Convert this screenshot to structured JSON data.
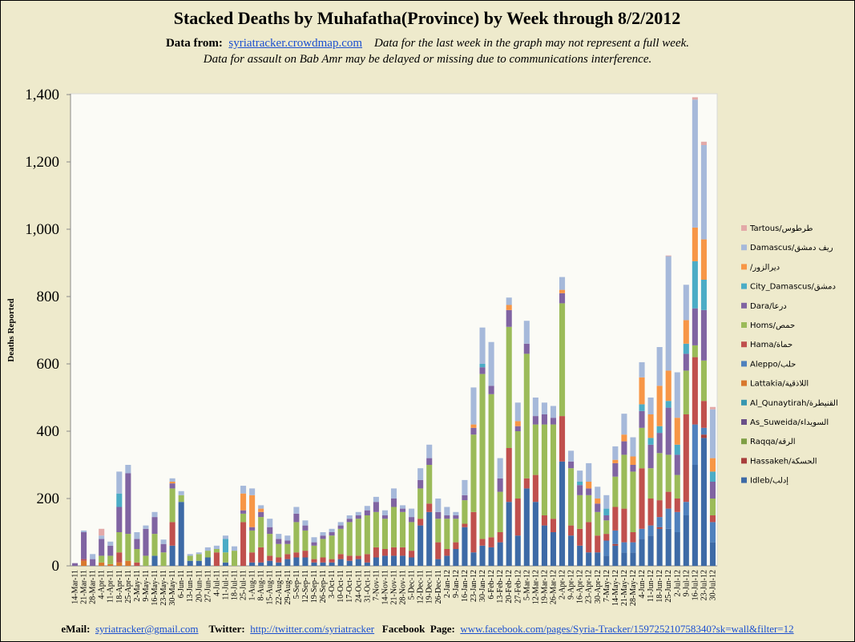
{
  "chart_data": {
    "type": "stacked_bar",
    "title": "Stacked Deaths by Muhafatha(Province) by Week through 8/2/2012",
    "y_label": "Deaths Reported",
    "ylim": [
      0,
      1400
    ],
    "yticks": [
      0,
      200,
      400,
      600,
      800,
      {
        "value": 1000,
        "label": "1,000"
      },
      {
        "value": 1200,
        "label": "1,200"
      },
      {
        "value": 1400,
        "label": "1,400"
      }
    ],
    "grid": false,
    "legend": "right",
    "categories": [
      "14-Mar-11",
      "21-Mar-11",
      "28-Mar-11",
      "4-Apr-11",
      "11-Apr-11",
      "18-Apr-11",
      "25-Apr-11",
      "2-May-11",
      "9-May-11",
      "16-May-11",
      "23-May-11",
      "30-May-11",
      "6-Jun-11",
      "13-Jun-11",
      "20-Jun-11",
      "27-Jun-11",
      "4-Jul-11",
      "11-Jul-11",
      "18-Jul-11",
      "25-Jul-11",
      "1-Aug-11",
      "8-Aug-11",
      "15-Aug-11",
      "22-Aug-11",
      "29-Aug-11",
      "5-Sep-11",
      "12-Sep-11",
      "19-Sep-11",
      "26-Sep-11",
      "3-Oct-11",
      "10-Oct-11",
      "17-Oct-11",
      "24-Oct-11",
      "31-Oct-11",
      "7-Nov-11",
      "14-Nov-11",
      "21-Nov-11",
      "28-Nov-11",
      "5-Dec-11",
      "12-Dec-11",
      "19-Dec-11",
      "26-Dec-11",
      "2-Jan-12",
      "9-Jan-12",
      "16-Jan-12",
      "23-Jan-12",
      "30-Jan-12",
      "6-Feb-12",
      "13-Feb-12",
      "20-Feb-12",
      "27-Feb-12",
      "5-Mar-12",
      "12-Mar-12",
      "19-Mar-12",
      "26-Mar-12",
      "2-Apr-12",
      "9-Apr-12",
      "16-Apr-12",
      "23-Apr-12",
      "30-Apr-12",
      "7-May-12",
      "14-May-12",
      "21-May-12",
      "28-May-12",
      "4-Jun-12",
      "11-Jun-12",
      "18-Jun-12",
      "25-Jun-12",
      "2-Jul-12",
      "9-Jul-12",
      "16-Jul-12",
      "23-Jul-12",
      "30-Jul-12"
    ],
    "series": [
      {
        "name": "Idleb/إدلب",
        "color": "#3d6aa6",
        "values": [
          0,
          0,
          0,
          0,
          0,
          0,
          0,
          0,
          0,
          30,
          0,
          60,
          190,
          15,
          15,
          25,
          0,
          10,
          0,
          0,
          10,
          10,
          15,
          10,
          20,
          25,
          25,
          10,
          10,
          10,
          20,
          15,
          20,
          10,
          25,
          30,
          30,
          30,
          25,
          120,
          160,
          20,
          30,
          50,
          115,
          40,
          60,
          55,
          70,
          190,
          90,
          230,
          190,
          120,
          100,
          310,
          90,
          60,
          40,
          40,
          30,
          60,
          40,
          40,
          80,
          90,
          110,
          110,
          100,
          150,
          300,
          380,
          70
        ]
      },
      {
        "name": "Hassakeh/الحسكة",
        "color": "#a83f3c",
        "values": [
          0,
          0,
          0,
          0,
          0,
          0,
          0,
          0,
          0,
          0,
          0,
          0,
          0,
          0,
          0,
          0,
          0,
          0,
          0,
          0,
          0,
          0,
          0,
          0,
          0,
          0,
          0,
          0,
          0,
          0,
          0,
          0,
          0,
          0,
          0,
          0,
          0,
          0,
          0,
          0,
          0,
          0,
          0,
          0,
          0,
          0,
          0,
          0,
          0,
          0,
          0,
          0,
          0,
          0,
          0,
          0,
          0,
          0,
          0,
          0,
          0,
          5,
          0,
          0,
          0,
          0,
          5,
          0,
          0,
          0,
          0,
          10,
          0
        ]
      },
      {
        "name": "Raqqa/الرقة",
        "color": "#7f9f45",
        "values": [
          0,
          0,
          0,
          0,
          0,
          0,
          0,
          0,
          0,
          0,
          0,
          0,
          0,
          0,
          0,
          0,
          0,
          0,
          0,
          0,
          0,
          0,
          0,
          0,
          0,
          0,
          0,
          0,
          0,
          0,
          0,
          0,
          0,
          0,
          0,
          0,
          0,
          0,
          0,
          0,
          0,
          0,
          0,
          0,
          0,
          0,
          0,
          0,
          0,
          0,
          0,
          0,
          0,
          0,
          0,
          0,
          0,
          0,
          0,
          0,
          0,
          0,
          0,
          0,
          0,
          0,
          0,
          0,
          0,
          0,
          0,
          0,
          0
        ]
      },
      {
        "name": "As_Suweida/السويداء",
        "color": "#6a5088",
        "values": [
          0,
          0,
          0,
          0,
          0,
          0,
          0,
          0,
          0,
          0,
          0,
          0,
          0,
          0,
          0,
          0,
          0,
          0,
          0,
          0,
          0,
          0,
          0,
          0,
          0,
          0,
          0,
          0,
          0,
          0,
          0,
          0,
          0,
          0,
          0,
          0,
          0,
          0,
          0,
          0,
          0,
          0,
          0,
          0,
          0,
          0,
          0,
          0,
          0,
          0,
          0,
          0,
          0,
          0,
          0,
          0,
          0,
          0,
          0,
          0,
          0,
          0,
          0,
          0,
          0,
          0,
          0,
          0,
          0,
          0,
          0,
          0,
          0
        ]
      },
      {
        "name": "Al_Qunaytirah/القنيطرة",
        "color": "#3797b0",
        "values": [
          0,
          0,
          0,
          0,
          0,
          0,
          0,
          0,
          0,
          0,
          0,
          0,
          0,
          0,
          0,
          0,
          0,
          0,
          0,
          0,
          0,
          0,
          0,
          0,
          0,
          0,
          0,
          0,
          0,
          0,
          0,
          0,
          0,
          0,
          0,
          0,
          0,
          0,
          0,
          0,
          0,
          0,
          0,
          0,
          0,
          0,
          0,
          0,
          0,
          0,
          0,
          0,
          0,
          0,
          0,
          0,
          0,
          0,
          0,
          0,
          0,
          0,
          0,
          0,
          0,
          0,
          0,
          0,
          0,
          0,
          0,
          0,
          0
        ]
      },
      {
        "name": "Lattakia/اللاذقية",
        "color": "#d8782e",
        "values": [
          0,
          15,
          0,
          10,
          5,
          10,
          15,
          0,
          0,
          0,
          0,
          0,
          0,
          0,
          0,
          0,
          0,
          0,
          0,
          0,
          0,
          0,
          0,
          0,
          0,
          0,
          0,
          0,
          0,
          0,
          0,
          0,
          0,
          0,
          0,
          0,
          0,
          0,
          0,
          0,
          0,
          0,
          0,
          0,
          0,
          0,
          0,
          0,
          0,
          0,
          0,
          0,
          0,
          0,
          0,
          0,
          0,
          0,
          0,
          0,
          0,
          0,
          0,
          0,
          0,
          0,
          0,
          0,
          0,
          0,
          0,
          0,
          0
        ]
      },
      {
        "name": "Aleppo/حلب",
        "color": "#4f81bd",
        "values": [
          0,
          0,
          0,
          0,
          0,
          0,
          0,
          0,
          0,
          0,
          0,
          0,
          0,
          0,
          0,
          0,
          0,
          0,
          0,
          0,
          0,
          0,
          0,
          0,
          0,
          0,
          0,
          0,
          0,
          0,
          0,
          0,
          0,
          0,
          0,
          0,
          0,
          0,
          0,
          0,
          0,
          0,
          0,
          0,
          0,
          0,
          0,
          0,
          0,
          0,
          0,
          0,
          0,
          0,
          0,
          0,
          0,
          0,
          0,
          0,
          45,
          40,
          30,
          30,
          30,
          30,
          30,
          60,
          60,
          40,
          120,
          20,
          60
        ]
      },
      {
        "name": "Hama/حماة",
        "color": "#c0504d",
        "values": [
          0,
          5,
          0,
          0,
          0,
          30,
          0,
          10,
          0,
          0,
          0,
          70,
          0,
          0,
          0,
          0,
          40,
          0,
          0,
          130,
          30,
          45,
          15,
          15,
          15,
          15,
          20,
          10,
          15,
          10,
          15,
          15,
          10,
          25,
          30,
          20,
          25,
          25,
          20,
          20,
          25,
          50,
          20,
          20,
          10,
          120,
          20,
          30,
          30,
          160,
          110,
          30,
          80,
          30,
          40,
          135,
          30,
          50,
          90,
          50,
          20,
          70,
          100,
          30,
          180,
          80,
          50,
          50,
          40,
          260,
          200,
          80,
          20
        ]
      },
      {
        "name": "Homs/حمص",
        "color": "#9bbb59",
        "values": [
          0,
          0,
          0,
          20,
          25,
          60,
          80,
          40,
          30,
          65,
          40,
          100,
          20,
          15,
          20,
          20,
          10,
          30,
          45,
          25,
          65,
          90,
          65,
          40,
          30,
          90,
          60,
          40,
          55,
          70,
          75,
          100,
          110,
          115,
          105,
          90,
          120,
          105,
          85,
          90,
          115,
          70,
          90,
          70,
          70,
          230,
          490,
          425,
          120,
          360,
          200,
          370,
          150,
          270,
          280,
          335,
          170,
          100,
          80,
          70,
          40,
          90,
          160,
          180,
          120,
          90,
          140,
          110,
          70,
          130,
          35,
          120,
          50
        ]
      },
      {
        "name": "Dara/درعا",
        "color": "#8064a2",
        "values": [
          8,
          80,
          20,
          50,
          30,
          75,
          180,
          30,
          80,
          50,
          25,
          15,
          0,
          0,
          0,
          0,
          0,
          0,
          0,
          10,
          10,
          15,
          20,
          15,
          10,
          25,
          15,
          10,
          10,
          10,
          10,
          10,
          10,
          15,
          30,
          10,
          25,
          10,
          15,
          25,
          20,
          20,
          10,
          10,
          15,
          20,
          20,
          25,
          40,
          50,
          15,
          30,
          25,
          30,
          20,
          30,
          20,
          30,
          20,
          25,
          15,
          40,
          40,
          20,
          50,
          70,
          60,
          140,
          60,
          50,
          110,
          150,
          50
        ]
      },
      {
        "name": "City_Damascus/دمشق",
        "color": "#4bacc6",
        "values": [
          0,
          0,
          0,
          0,
          0,
          40,
          0,
          0,
          0,
          0,
          0,
          0,
          0,
          0,
          0,
          0,
          0,
          40,
          0,
          0,
          0,
          0,
          0,
          0,
          0,
          0,
          0,
          0,
          0,
          0,
          0,
          0,
          0,
          0,
          0,
          0,
          0,
          0,
          0,
          0,
          0,
          0,
          0,
          0,
          0,
          0,
          10,
          0,
          0,
          0,
          0,
          0,
          0,
          0,
          0,
          0,
          0,
          10,
          0,
          0,
          20,
          0,
          0,
          0,
          20,
          20,
          20,
          20,
          30,
          30,
          140,
          90,
          30
        ]
      },
      {
        "name": "/ديرالزور",
        "color": "#f79646",
        "values": [
          0,
          0,
          0,
          0,
          0,
          0,
          0,
          0,
          0,
          0,
          0,
          5,
          0,
          0,
          0,
          0,
          0,
          0,
          0,
          50,
          95,
          10,
          0,
          0,
          0,
          0,
          0,
          0,
          0,
          0,
          0,
          0,
          0,
          0,
          0,
          0,
          0,
          0,
          0,
          0,
          0,
          0,
          0,
          0,
          0,
          10,
          0,
          0,
          0,
          15,
          15,
          0,
          0,
          0,
          0,
          10,
          0,
          0,
          20,
          15,
          0,
          10,
          20,
          25,
          80,
          70,
          120,
          90,
          80,
          70,
          100,
          120,
          40
        ]
      },
      {
        "name": "Damascus/ريف دمشق",
        "color": "#a6b9da",
        "values": [
          0,
          5,
          15,
          10,
          12,
          65,
          25,
          20,
          10,
          15,
          13,
          10,
          12,
          5,
          5,
          10,
          10,
          10,
          13,
          23,
          20,
          10,
          25,
          15,
          15,
          20,
          15,
          15,
          10,
          10,
          10,
          10,
          10,
          13,
          15,
          15,
          30,
          10,
          25,
          35,
          40,
          40,
          25,
          10,
          45,
          110,
          108,
          130,
          60,
          22,
          55,
          68,
          55,
          35,
          35,
          38,
          32,
          33,
          55,
          35,
          40,
          40,
          62,
          57,
          45,
          50,
          115,
          340,
          135,
          105,
          380,
          280,
          145
        ]
      },
      {
        "name": "Tartous/طرطوس",
        "color": "#e3a9a8",
        "values": [
          0,
          0,
          0,
          20,
          0,
          0,
          0,
          0,
          0,
          0,
          0,
          0,
          0,
          0,
          0,
          0,
          0,
          0,
          0,
          0,
          0,
          0,
          0,
          0,
          0,
          0,
          0,
          0,
          0,
          0,
          0,
          0,
          0,
          0,
          0,
          0,
          0,
          0,
          0,
          0,
          0,
          0,
          0,
          0,
          0,
          0,
          0,
          0,
          0,
          0,
          0,
          0,
          0,
          0,
          0,
          0,
          0,
          0,
          0,
          0,
          0,
          0,
          0,
          0,
          0,
          0,
          0,
          2,
          0,
          0,
          7,
          10,
          7
        ]
      }
    ]
  },
  "source": {
    "label": "Data from:",
    "link": "syriatracker.crowdmap.com"
  },
  "notes": [
    "Data for the last week in the graph may not represent a full week.",
    "Data for assault on Bab Amr may be delayed or missing due to communications interference."
  ],
  "footer": {
    "email_label": "eMail:",
    "email": "syriatracker@gmail.com",
    "twitter_label": "Twitter:",
    "twitter": "http://twitter.com/syriatracker",
    "facebook_label": "Facebook  Page:",
    "facebook": "www.facebook.com/pages/Syria-Tracker/159725210758340?sk=wall&filter=12"
  }
}
